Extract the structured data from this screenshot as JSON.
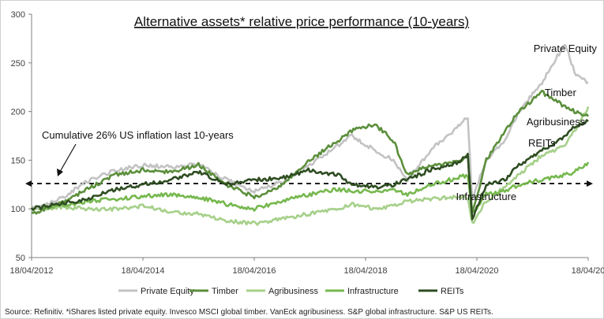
{
  "chart_data": {
    "type": "line",
    "title": "Alternative assets* relative price performance (10-years)",
    "xlabel": "",
    "ylabel": "",
    "ylim": [
      50,
      300
    ],
    "yticks": [
      50,
      100,
      150,
      200,
      250,
      300
    ],
    "xlim": [
      "2012-04-18",
      "2022-04-18"
    ],
    "xtick_labels": [
      "18/04/2012",
      "18/04/2014",
      "18/04/2016",
      "18/04/2018",
      "18/04/2020",
      "18/04/20"
    ],
    "grid": false,
    "legend_position": "bottom",
    "series": [
      {
        "name": "Private Equity",
        "color": "#c3c3c3",
        "x": [
          "2012-04-18",
          "2012-10-18",
          "2013-04-18",
          "2013-10-18",
          "2014-04-18",
          "2014-10-18",
          "2015-04-18",
          "2015-10-18",
          "2016-04-18",
          "2016-10-18",
          "2017-04-18",
          "2017-10-18",
          "2018-01-18",
          "2018-06-18",
          "2018-10-18",
          "2019-01-18",
          "2019-06-18",
          "2019-12-18",
          "2020-02-18",
          "2020-03-18",
          "2020-06-18",
          "2020-10-18",
          "2021-01-18",
          "2021-06-18",
          "2021-11-18",
          "2022-01-18",
          "2022-04-18"
        ],
        "values": [
          100,
          110,
          128,
          140,
          145,
          143,
          146,
          130,
          118,
          128,
          145,
          165,
          175,
          160,
          150,
          130,
          160,
          185,
          195,
          110,
          150,
          170,
          200,
          230,
          270,
          240,
          230
        ]
      },
      {
        "name": "Timber",
        "color": "#5c8f3c",
        "x": [
          "2012-04-18",
          "2012-10-18",
          "2013-04-18",
          "2013-10-18",
          "2014-04-18",
          "2014-10-18",
          "2015-04-18",
          "2015-10-18",
          "2016-04-18",
          "2016-10-18",
          "2017-04-18",
          "2017-10-18",
          "2018-01-18",
          "2018-06-18",
          "2018-10-18",
          "2019-01-18",
          "2019-06-18",
          "2019-12-18",
          "2020-02-18",
          "2020-03-18",
          "2020-06-18",
          "2020-10-18",
          "2021-01-18",
          "2021-06-18",
          "2021-11-18",
          "2022-01-18",
          "2022-04-18"
        ],
        "values": [
          95,
          105,
          120,
          135,
          140,
          138,
          145,
          125,
          112,
          125,
          150,
          170,
          180,
          187,
          170,
          135,
          145,
          148,
          155,
          95,
          150,
          180,
          200,
          220,
          205,
          200,
          195
        ]
      },
      {
        "name": "Agribusiness",
        "color": "#a6d08a",
        "x": [
          "2012-04-18",
          "2012-10-18",
          "2013-04-18",
          "2013-10-18",
          "2014-04-18",
          "2014-10-18",
          "2015-04-18",
          "2015-10-18",
          "2016-04-18",
          "2016-10-18",
          "2017-04-18",
          "2017-10-18",
          "2018-01-18",
          "2018-06-18",
          "2018-10-18",
          "2019-01-18",
          "2019-06-18",
          "2019-12-18",
          "2020-02-18",
          "2020-03-18",
          "2020-06-18",
          "2020-10-18",
          "2021-01-18",
          "2021-06-18",
          "2021-11-18",
          "2022-01-18",
          "2022-04-18"
        ],
        "values": [
          100,
          102,
          100,
          100,
          103,
          97,
          95,
          88,
          85,
          90,
          95,
          100,
          105,
          100,
          103,
          108,
          110,
          113,
          112,
          85,
          108,
          122,
          135,
          155,
          165,
          180,
          205
        ]
      },
      {
        "name": "Infrastructure",
        "color": "#76b84e",
        "x": [
          "2012-04-18",
          "2012-10-18",
          "2013-04-18",
          "2013-10-18",
          "2014-04-18",
          "2014-10-18",
          "2015-04-18",
          "2015-10-18",
          "2016-04-18",
          "2016-10-18",
          "2017-04-18",
          "2017-10-18",
          "2018-01-18",
          "2018-06-18",
          "2018-10-18",
          "2019-01-18",
          "2019-06-18",
          "2019-12-18",
          "2020-02-18",
          "2020-03-18",
          "2020-06-18",
          "2020-10-18",
          "2021-01-18",
          "2021-06-18",
          "2021-11-18",
          "2022-01-18",
          "2022-04-18"
        ],
        "values": [
          100,
          103,
          108,
          110,
          113,
          115,
          112,
          105,
          100,
          108,
          115,
          120,
          118,
          118,
          120,
          115,
          125,
          132,
          135,
          95,
          115,
          118,
          125,
          130,
          135,
          138,
          148
        ]
      },
      {
        "name": "REITs",
        "color": "#2f4d22",
        "x": [
          "2012-04-18",
          "2012-10-18",
          "2013-04-18",
          "2013-10-18",
          "2014-04-18",
          "2014-10-18",
          "2015-04-18",
          "2015-10-18",
          "2016-04-18",
          "2016-10-18",
          "2017-04-18",
          "2017-10-18",
          "2018-01-18",
          "2018-06-18",
          "2018-10-18",
          "2019-01-18",
          "2019-06-18",
          "2019-12-18",
          "2020-02-18",
          "2020-03-18",
          "2020-06-18",
          "2020-10-18",
          "2021-01-18",
          "2021-06-18",
          "2021-11-18",
          "2022-01-18",
          "2022-04-18"
        ],
        "values": [
          100,
          105,
          110,
          120,
          125,
          130,
          138,
          125,
          130,
          132,
          140,
          135,
          125,
          122,
          125,
          130,
          140,
          148,
          155,
          90,
          125,
          130,
          145,
          160,
          175,
          185,
          190
        ]
      }
    ],
    "reference_line": {
      "value": 126,
      "style": "dashed",
      "label": "Cumulative 26% US inflation last 10-years"
    },
    "series_labels": [
      {
        "text": "Private Equity",
        "series": "Private Equity",
        "x": "2021-11-18",
        "y": 261
      },
      {
        "text": "Timber",
        "series": "Timber",
        "x": "2021-10-18",
        "y": 216
      },
      {
        "text": "Agribusiness",
        "series": "Agribusiness",
        "x": "2021-09-18",
        "y": 186
      },
      {
        "text": "REITs",
        "series": "REITs",
        "x": "2021-06-18",
        "y": 164
      },
      {
        "text": "Infrastructure",
        "series": "Infrastructure",
        "x": "2020-06-18",
        "y": 109
      }
    ]
  },
  "legend": {
    "items": [
      {
        "label": "Private Equity",
        "color": "#c3c3c3"
      },
      {
        "label": "Timber",
        "color": "#5c8f3c"
      },
      {
        "label": "Agribusiness",
        "color": "#a6d08a"
      },
      {
        "label": "Infrastructure",
        "color": "#76b84e"
      },
      {
        "label": "REITs",
        "color": "#2f4d22"
      }
    ]
  },
  "source": "Source: Refinitiv. *iShares listed private equity. Invesco MSCI global timber. VanEck agribusiness. S&P global infrastructure. S&P US REITs."
}
